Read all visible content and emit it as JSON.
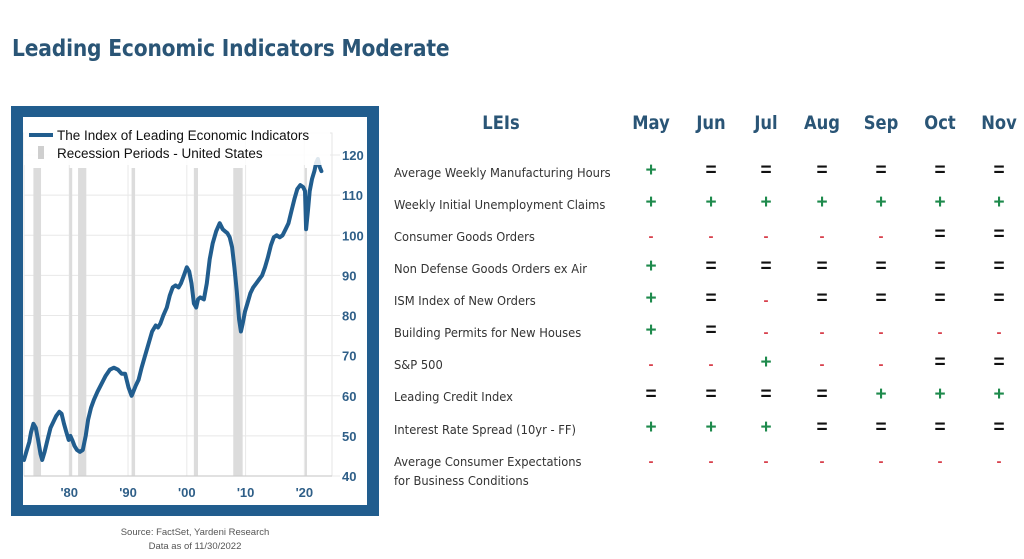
{
  "page": {
    "title": "Leading Economic Indicators Moderate"
  },
  "colors": {
    "title": "#2a5576",
    "frame": "#215d8e",
    "line": "#215d8e",
    "recession": "#d9d9d9",
    "plus": "#1e8a4c",
    "equal": "#111111",
    "minus": "#d8414d"
  },
  "source": {
    "line1": "Source: FactSet, Yardeni Research",
    "line2": "Data as of 11/30/2022"
  },
  "table": {
    "header_label": "LEIs",
    "months": [
      "May",
      "Jun",
      "Jul",
      "Aug",
      "Sep",
      "Oct",
      "Nov"
    ],
    "symbols": {
      "plus": "+",
      "equal": "=",
      "minus": "-"
    },
    "rows": [
      {
        "label": "Average Weekly Manufacturing Hours",
        "values": [
          "plus",
          "equal",
          "equal",
          "equal",
          "equal",
          "equal",
          "equal"
        ]
      },
      {
        "label": "Weekly Initial Unemployment Claims",
        "values": [
          "plus",
          "plus",
          "plus",
          "plus",
          "plus",
          "plus",
          "plus"
        ]
      },
      {
        "label": "Consumer Goods Orders",
        "values": [
          "minus",
          "minus",
          "minus",
          "minus",
          "minus",
          "equal",
          "equal"
        ]
      },
      {
        "label": "Non Defense Goods Orders ex Air",
        "values": [
          "plus",
          "equal",
          "equal",
          "equal",
          "equal",
          "equal",
          "equal"
        ]
      },
      {
        "label": "ISM Index of New Orders",
        "values": [
          "plus",
          "equal",
          "minus",
          "equal",
          "equal",
          "equal",
          "equal"
        ]
      },
      {
        "label": "Building Permits for New Houses",
        "values": [
          "plus",
          "equal",
          "minus",
          "minus",
          "minus",
          "minus",
          "minus"
        ]
      },
      {
        "label": "S&P 500",
        "values": [
          "minus",
          "minus",
          "plus",
          "minus",
          "minus",
          "equal",
          "equal"
        ]
      },
      {
        "label": "Leading Credit Index",
        "values": [
          "equal",
          "equal",
          "equal",
          "equal",
          "plus",
          "plus",
          "plus"
        ]
      },
      {
        "label": "Interest Rate Spread (10yr - FF)",
        "values": [
          "plus",
          "plus",
          "plus",
          "equal",
          "equal",
          "equal",
          "equal"
        ]
      },
      {
        "label": "Average Consumer Expectations",
        "label2": "for Business Conditions",
        "values": [
          "minus",
          "minus",
          "minus",
          "minus",
          "minus",
          "minus",
          "minus"
        ]
      }
    ]
  },
  "chart_data": {
    "type": "line",
    "title": "",
    "legend": [
      {
        "name": "The Index of Leading Economic Indicators",
        "kind": "line"
      },
      {
        "name": "Recession Periods - United States",
        "kind": "shade"
      }
    ],
    "legend_position": "top-left",
    "xlabel": "",
    "ylabel": "",
    "x_ticks": [
      {
        "value": 1980,
        "label": "'80"
      },
      {
        "value": 1990,
        "label": "'90"
      },
      {
        "value": 2000,
        "label": "'00"
      },
      {
        "value": 2010,
        "label": "'10"
      },
      {
        "value": 2020,
        "label": "'20"
      }
    ],
    "y_ticks": [
      40,
      50,
      60,
      70,
      80,
      90,
      100,
      110,
      120
    ],
    "xlim": [
      1972.3,
      2024.7
    ],
    "ylim": [
      40,
      122
    ],
    "y_axis_side": "right",
    "grid": true,
    "recessions": [
      [
        1973.9,
        1975.2
      ],
      [
        1980.0,
        1980.5
      ],
      [
        1981.5,
        1982.9
      ],
      [
        1990.6,
        1991.2
      ],
      [
        2001.2,
        2001.9
      ],
      [
        2007.9,
        2009.5
      ],
      [
        2020.1,
        2020.3
      ]
    ],
    "series": [
      {
        "name": "The Index of Leading Economic Indicators",
        "x": [
          1972.3,
          1972.8,
          1973.2,
          1973.5,
          1973.9,
          1974.3,
          1974.7,
          1975.1,
          1975.4,
          1975.8,
          1976.3,
          1976.8,
          1977.3,
          1977.8,
          1978.3,
          1978.7,
          1979.1,
          1979.5,
          1979.9,
          1980.2,
          1980.5,
          1980.9,
          1981.3,
          1981.8,
          1982.3,
          1982.8,
          1983.2,
          1983.7,
          1984.2,
          1984.8,
          1985.5,
          1986.2,
          1986.9,
          1987.6,
          1988.3,
          1988.9,
          1989.5,
          1990.1,
          1990.6,
          1990.9,
          1991.3,
          1991.8,
          1992.3,
          1992.9,
          1993.5,
          1994.1,
          1994.7,
          1995.1,
          1995.5,
          1996.0,
          1996.6,
          1997.1,
          1997.6,
          1998.1,
          1998.6,
          1999.0,
          1999.5,
          2000.0,
          2000.4,
          2000.8,
          2001.2,
          2001.6,
          2001.9,
          2002.3,
          2002.9,
          2003.4,
          2003.9,
          2004.4,
          2005.0,
          2005.6,
          2006.1,
          2006.5,
          2006.9,
          2007.3,
          2007.7,
          2008.1,
          2008.5,
          2008.9,
          2009.2,
          2009.5,
          2009.9,
          2010.3,
          2010.8,
          2011.3,
          2011.8,
          2012.3,
          2012.8,
          2013.3,
          2013.8,
          2014.3,
          2014.8,
          2015.3,
          2015.8,
          2016.3,
          2016.8,
          2017.3,
          2017.8,
          2018.3,
          2018.8,
          2019.3,
          2019.8,
          2020.1,
          2020.3,
          2020.6,
          2020.9,
          2021.3,
          2021.7,
          2022.0,
          2022.3,
          2022.6,
          2022.9
        ],
        "values": [
          44,
          46.5,
          48.5,
          51,
          53,
          52,
          49,
          45.5,
          44,
          46,
          49,
          52,
          53.5,
          55,
          56,
          55.5,
          53,
          51,
          49,
          50,
          49,
          47.5,
          46.5,
          46,
          46.5,
          50,
          54,
          57,
          59,
          61,
          63,
          65,
          66.5,
          67,
          66.5,
          65.5,
          65.5,
          62,
          60,
          61,
          62.5,
          64,
          67,
          70,
          73,
          76,
          77.5,
          77,
          78,
          80,
          82,
          85,
          87,
          87.5,
          87,
          88,
          90,
          92,
          91,
          88,
          83,
          82,
          84,
          84.5,
          84,
          88,
          94,
          98,
          101,
          103,
          101.5,
          101,
          100.5,
          99.5,
          97,
          92,
          86,
          79,
          76,
          78,
          81,
          83,
          85.5,
          87,
          88,
          89,
          90,
          92,
          94.5,
          97.5,
          99.5,
          100,
          99.5,
          100,
          101.5,
          103,
          106,
          109,
          111.5,
          112.5,
          112,
          111,
          101.5,
          106,
          111,
          114,
          116,
          118,
          119,
          117,
          116
        ]
      }
    ]
  }
}
